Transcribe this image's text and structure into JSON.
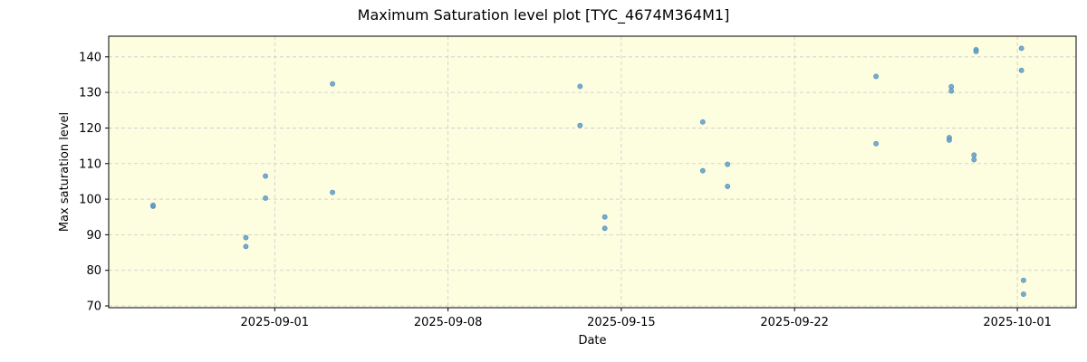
{
  "chart_data": {
    "type": "scatter",
    "title": "Maximum Saturation level plot [TYC_4674M364M1]",
    "xlabel": "Date",
    "ylabel": "Max saturation level",
    "xlim": [
      "2025-08-25T07:00",
      "2025-10-03T09:00"
    ],
    "ylim": [
      69.5,
      145.8
    ],
    "x_ticks": [
      "2025-09-01",
      "2025-09-08",
      "2025-09-15",
      "2025-09-22",
      "2025-10-01"
    ],
    "y_ticks": [
      70,
      80,
      90,
      100,
      110,
      120,
      130,
      140
    ],
    "grid": true,
    "colors": {
      "plot_background": "#fdfde0",
      "point": "#5f9fc8",
      "grid": "#cccccc"
    },
    "series": [
      {
        "points": [
          [
            "2025-08-27T02:00",
            98.0
          ],
          [
            "2025-08-27T02:00",
            98.3
          ],
          [
            "2025-08-30T20:00",
            89.2
          ],
          [
            "2025-08-30T20:00",
            86.7
          ],
          [
            "2025-08-31T15:00",
            106.5
          ],
          [
            "2025-08-31T15:00",
            100.3
          ],
          [
            "2025-09-03T08:00",
            132.4
          ],
          [
            "2025-09-03T08:00",
            101.9
          ],
          [
            "2025-09-13T08:00",
            131.7
          ],
          [
            "2025-09-13T08:00",
            120.7
          ],
          [
            "2025-09-14T08:00",
            95.0
          ],
          [
            "2025-09-14T08:00",
            91.8
          ],
          [
            "2025-09-18T07:00",
            121.7
          ],
          [
            "2025-09-18T07:00",
            108.0
          ],
          [
            "2025-09-19T07:00",
            109.8
          ],
          [
            "2025-09-19T07:00",
            103.6
          ],
          [
            "2025-09-25T07:00",
            134.5
          ],
          [
            "2025-09-25T07:00",
            115.6
          ],
          [
            "2025-09-28T06:00",
            117.3
          ],
          [
            "2025-09-28T06:00",
            116.6
          ],
          [
            "2025-09-28T08:00",
            131.6
          ],
          [
            "2025-09-28T08:00",
            130.4
          ],
          [
            "2025-09-29T06:00",
            112.4
          ],
          [
            "2025-09-29T06:00",
            111.1
          ],
          [
            "2025-09-29T08:00",
            142.0
          ],
          [
            "2025-09-29T08:00",
            141.5
          ],
          [
            "2025-10-01T04:00",
            142.4
          ],
          [
            "2025-10-01T04:00",
            136.2
          ],
          [
            "2025-10-01T06:00",
            77.2
          ],
          [
            "2025-10-01T06:00",
            73.3
          ]
        ]
      }
    ]
  }
}
